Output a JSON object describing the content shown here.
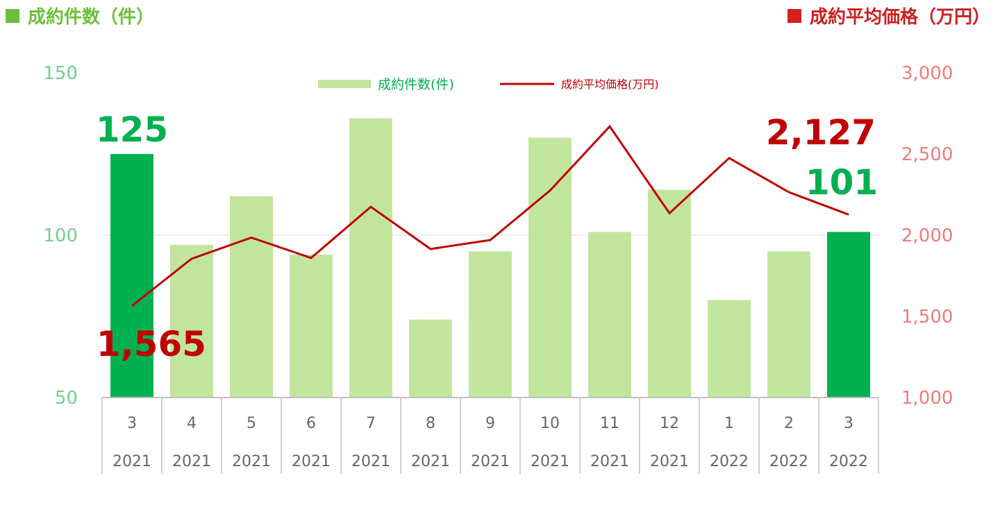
{
  "header": {
    "left_title": "成約件数（件）",
    "right_title": "成約平均価格（万円）",
    "left_color": "#6cbf3a",
    "right_color": "#cc1f1f"
  },
  "chart_data": {
    "type": "bar",
    "categories": [
      {
        "month": "3",
        "year": "2021"
      },
      {
        "month": "4",
        "year": "2021"
      },
      {
        "month": "5",
        "year": "2021"
      },
      {
        "month": "6",
        "year": "2021"
      },
      {
        "month": "7",
        "year": "2021"
      },
      {
        "month": "8",
        "year": "2021"
      },
      {
        "month": "9",
        "year": "2021"
      },
      {
        "month": "10",
        "year": "2021"
      },
      {
        "month": "11",
        "year": "2021"
      },
      {
        "month": "12",
        "year": "2021"
      },
      {
        "month": "1",
        "year": "2022"
      },
      {
        "month": "2",
        "year": "2022"
      },
      {
        "month": "3",
        "year": "2022"
      }
    ],
    "series": [
      {
        "name": "成約件数(件)",
        "type": "bar",
        "axis": "left",
        "values": [
          125,
          97,
          112,
          94,
          136,
          74,
          95,
          130,
          101,
          114,
          80,
          95,
          101
        ],
        "color": "#c2e59e",
        "highlight_color": "#00b050",
        "highlight_indices": [
          0,
          12
        ]
      },
      {
        "name": "成約平均価格(万円)",
        "type": "line",
        "axis": "right",
        "values": [
          1565,
          1855,
          1985,
          1860,
          2175,
          1915,
          1970,
          2275,
          2670,
          2135,
          2475,
          2265,
          2127
        ],
        "color": "#c00000"
      }
    ],
    "y_left": {
      "min": 50,
      "max": 150,
      "ticks": [
        "50",
        "100",
        "150"
      ]
    },
    "y_right": {
      "min": 1000,
      "max": 3000,
      "ticks": [
        "1,000",
        "1,500",
        "2,000",
        "2,500",
        "3,000"
      ]
    },
    "gridline": "at 100",
    "legend_position": "top-center",
    "annotations": {
      "first_count": "125",
      "last_count": "101",
      "first_price": "1,565",
      "last_price": "2,127",
      "count_color": "#00b050",
      "price_color": "#c00000"
    }
  }
}
